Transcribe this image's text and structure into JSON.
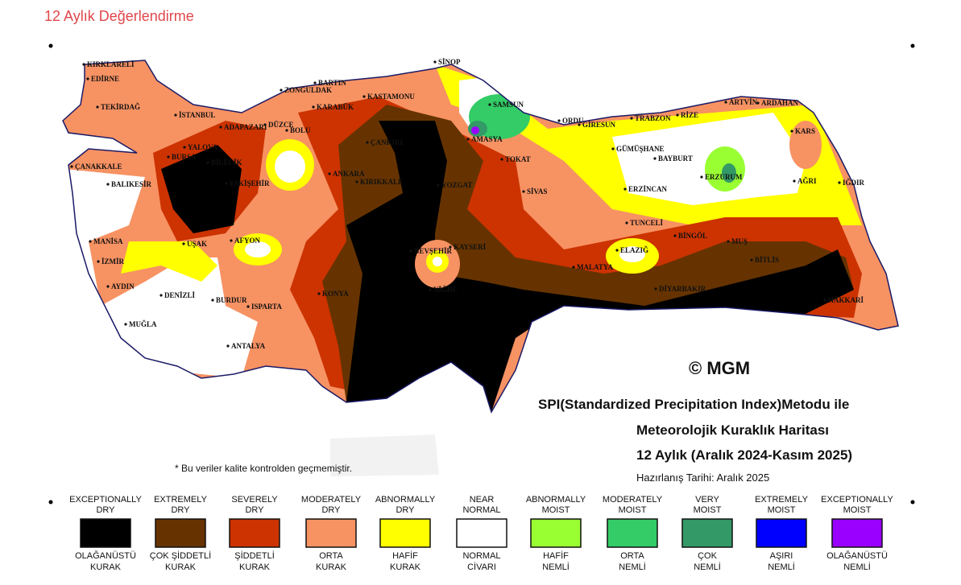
{
  "header": {
    "title": "12 Aylık Değerlendirme"
  },
  "map": {
    "cities": [
      "KIRKLARELİ",
      "EDİRNE",
      "TEKİRDAĞ",
      "İSTANBUL",
      "ADAPAZARI",
      "DÜZCE",
      "BOLU",
      "ZONGULDAK",
      "BARTIN",
      "KARABÜK",
      "KASTAMONU",
      "SİNOP",
      "SAMSUN",
      "ORDU",
      "GİRESUN",
      "TRABZON",
      "RİZE",
      "ARTVİN",
      "ARDAHAN",
      "KARS",
      "IĞDIR",
      "AĞRI",
      "ERZURUM",
      "BAYBURT",
      "GÜMÜŞHANE",
      "ERZİNCAN",
      "AMASYA",
      "TOKAT",
      "ÇANKIRI",
      "ANKARA",
      "KIRIKKALE",
      "YOZGAT",
      "SİVAS",
      "TUNCELİ",
      "BİNGÖL",
      "MUŞ",
      "BİTLİS",
      "ELAZIĞ",
      "MALATYA",
      "DİYARBAKIR",
      "HAKKARİ",
      "KAYSERİ",
      "NEVŞEHİR",
      "NİĞDE",
      "KONYA",
      "ESKİŞEHİR",
      "BİLECİK",
      "BURSA",
      "YALOVA",
      "ÇANAKKALE",
      "BALIKESİR",
      "MANİSA",
      "İZMİR",
      "AYDIN",
      "MUĞLA",
      "DENİZLİ",
      "UŞAK",
      "AFYON",
      "BURDUR",
      "ISPARTA",
      "ANTALYA"
    ],
    "copyright": "© MGM",
    "map_title": [
      "SPI(Standardized Precipitation Index)Metodu ile",
      "Meteorolojik Kuraklık Haritası",
      "12 Aylık (Aralık 2024-Kasım 2025)"
    ],
    "prepared": "Hazırlanış Tarihi: Aralık 2025",
    "note": "* Bu veriler kalite kontrolden geçmemiştir."
  },
  "legend": [
    {
      "en": [
        "EXCEPTIONALLY",
        "DRY"
      ],
      "tr": [
        "OLAĞANÜSTÜ",
        "KURAK"
      ],
      "color": "#000000"
    },
    {
      "en": [
        "EXTREMELY",
        "DRY"
      ],
      "tr": [
        "ÇOK ŞİDDETLİ",
        "KURAK"
      ],
      "color": "#663300"
    },
    {
      "en": [
        "SEVERELY",
        "DRY"
      ],
      "tr": [
        "ŞİDDETLİ",
        "KURAK"
      ],
      "color": "#cc3300"
    },
    {
      "en": [
        "MODERATELY",
        "DRY"
      ],
      "tr": [
        "ORTA",
        "KURAK"
      ],
      "color": "#f79263"
    },
    {
      "en": [
        "ABNORMALLY",
        "DRY"
      ],
      "tr": [
        "HAFİF",
        "KURAK"
      ],
      "color": "#ffff00"
    },
    {
      "en": [
        "NEAR",
        "NORMAL"
      ],
      "tr": [
        "NORMAL",
        "CİVARI"
      ],
      "color": "#ffffff"
    },
    {
      "en": [
        "ABNORMALLY",
        "MOIST"
      ],
      "tr": [
        "HAFİF",
        "NEMLİ"
      ],
      "color": "#99ff33"
    },
    {
      "en": [
        "MODERATELY",
        "MOIST"
      ],
      "tr": [
        "ORTA",
        "NEMLİ"
      ],
      "color": "#33cc66"
    },
    {
      "en": [
        "VERY",
        "MOIST"
      ],
      "tr": [
        "ÇOK",
        "NEMLİ"
      ],
      "color": "#339966"
    },
    {
      "en": [
        "EXTREMELY",
        "MOIST"
      ],
      "tr": [
        "AŞIRI",
        "NEMLİ"
      ],
      "color": "#0000ff"
    },
    {
      "en": [
        "EXCEPTIONALLY",
        "MOIST"
      ],
      "tr": [
        "OLAĞANÜSTÜ",
        "NEMLİ"
      ],
      "color": "#9900ff"
    }
  ]
}
